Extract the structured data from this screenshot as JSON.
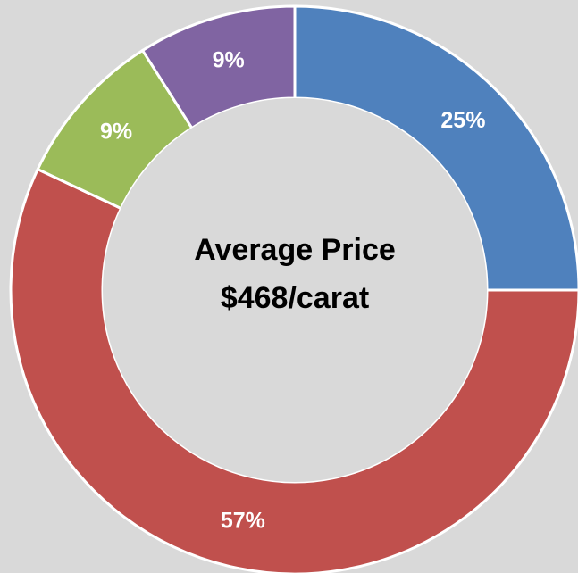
{
  "chart_data": {
    "type": "donut",
    "values": [
      25,
      57,
      9,
      9
    ],
    "value_labels": [
      "25%",
      "57%",
      "9%",
      "9%"
    ],
    "colors": [
      "#4f81bd",
      "#c0504d",
      "#9bbb59",
      "#8064a2"
    ],
    "center_text": [
      "Average Price",
      "$468/carat"
    ]
  }
}
